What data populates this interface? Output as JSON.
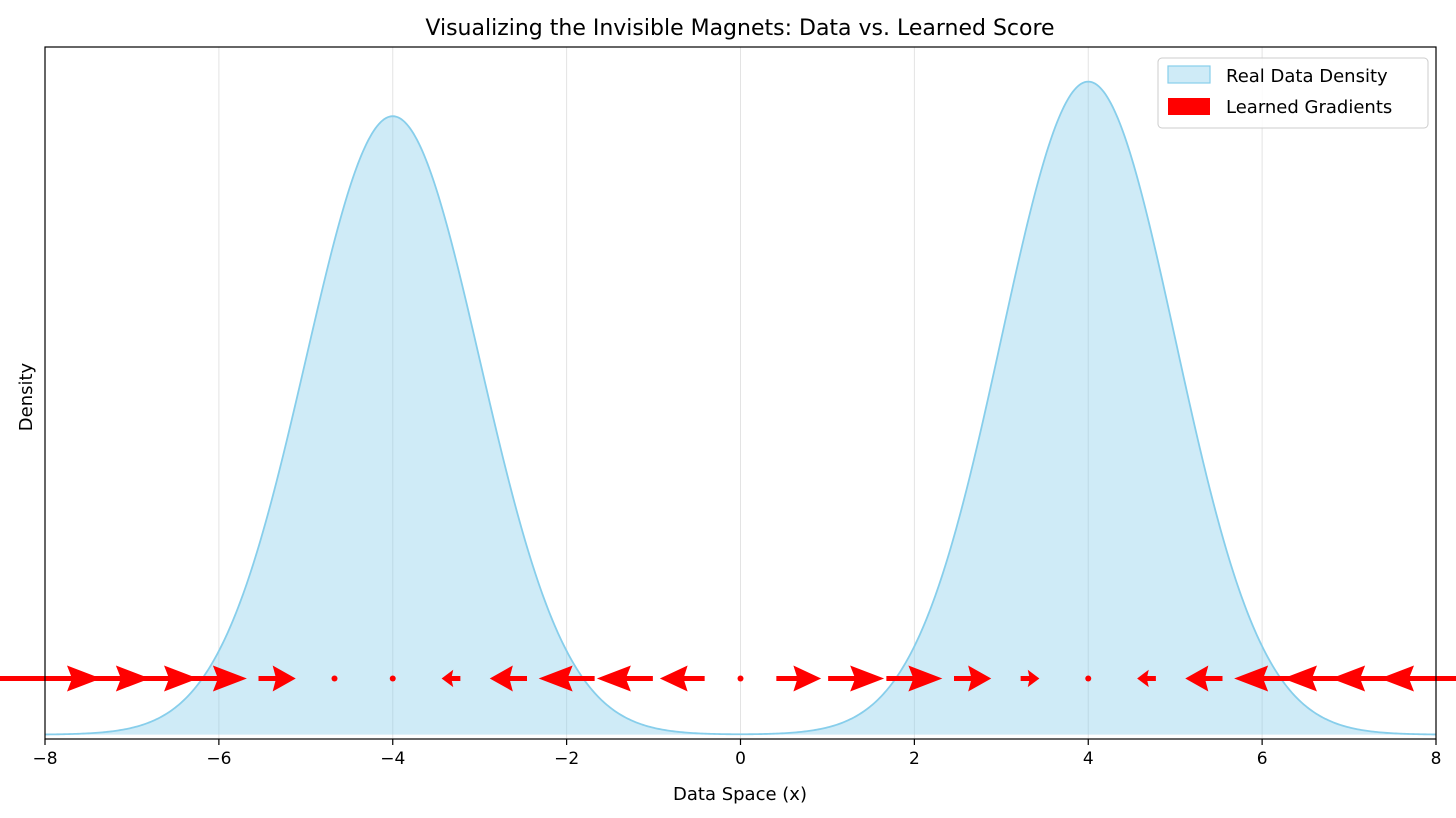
{
  "chart_data": {
    "type": "area",
    "title": "Visualizing the Invisible Magnets: Data vs. Learned Score",
    "xlabel": "Data Space (x)",
    "ylabel": "Density",
    "xlim": [
      -8,
      8
    ],
    "ylim": [
      -0.0005,
      0.0795
    ],
    "x_ticks": [
      -8,
      -6,
      -4,
      -2,
      0,
      2,
      4,
      6,
      8
    ],
    "x_tick_labels": [
      "−8",
      "−6",
      "−4",
      "−2",
      "0",
      "2",
      "4",
      "6",
      "8"
    ],
    "y_ticks_shown": false,
    "grid": "x-axis only",
    "legend_position": "top-right",
    "density_series": {
      "name": "Real Data Density",
      "fill_color": "#87ceeb",
      "fill_alpha": 0.4,
      "line_color": "#87ceeb",
      "components": [
        {
          "mean": -4,
          "std": 1,
          "peak": 0.0715
        },
        {
          "mean": 4,
          "std": 1,
          "peak": 0.0755
        }
      ]
    },
    "gradient_series": {
      "name": "Learned Gradients",
      "color": "#ff0000",
      "baseline_y": 0.0065,
      "x": [
        -8.0,
        -7.33,
        -6.67,
        -6.0,
        -5.33,
        -4.67,
        -4.0,
        -3.33,
        -2.67,
        -2.0,
        -1.33,
        -0.67,
        0.0,
        0.67,
        1.33,
        2.0,
        2.67,
        3.33,
        4.0,
        4.67,
        5.33,
        6.0,
        6.67,
        7.33,
        8.0
      ],
      "u": [
        4.0,
        3.33,
        2.67,
        2.0,
        1.33,
        0.0,
        0.0,
        -0.67,
        -1.33,
        -2.0,
        -2.0,
        -1.6,
        0.0,
        1.6,
        2.0,
        2.0,
        1.33,
        0.67,
        0.0,
        -0.67,
        -1.33,
        -2.0,
        -2.67,
        -3.33,
        -4.0
      ]
    }
  }
}
